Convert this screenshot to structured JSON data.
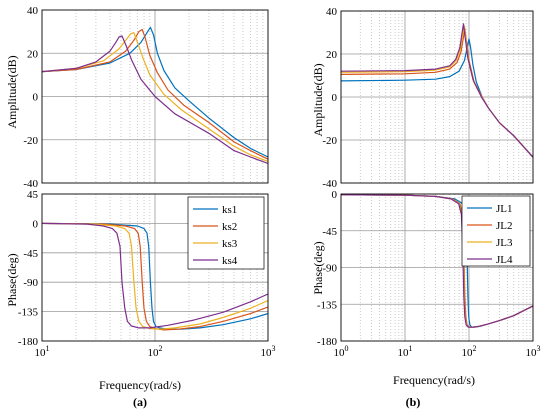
{
  "chart_data": [
    {
      "panel": "(a) amplitude",
      "type": "line",
      "xscale": "log",
      "xlim": [
        10,
        1000
      ],
      "ylim": [
        -40,
        40
      ],
      "ylabel": "Amplitude(dB)",
      "yticks": [
        40,
        20,
        0,
        -20,
        -40
      ],
      "grid": true,
      "series": [
        {
          "name": "ks1",
          "color": "#0072BD",
          "x": [
            10,
            20,
            40,
            60,
            75,
            85,
            91,
            97,
            105,
            120,
            150,
            200,
            300,
            500,
            700,
            1000
          ],
          "y": [
            11.5,
            12.5,
            15.5,
            20,
            25,
            29.5,
            32,
            28.5,
            20,
            12,
            4,
            -2,
            -10,
            -19,
            -24,
            -28
          ]
        },
        {
          "name": "ks2",
          "color": "#D95319",
          "x": [
            10,
            20,
            40,
            55,
            65,
            72,
            77,
            82,
            90,
            105,
            130,
            180,
            300,
            500,
            700,
            1000
          ],
          "y": [
            11.5,
            12.5,
            16,
            21,
            26,
            30,
            31,
            27,
            19,
            11,
            3,
            -4,
            -12,
            -21,
            -25,
            -29
          ]
        },
        {
          "name": "ks3",
          "color": "#EDB120",
          "x": [
            10,
            20,
            35,
            48,
            56,
            61,
            65,
            70,
            78,
            90,
            120,
            170,
            300,
            500,
            700,
            1000
          ],
          "y": [
            11.5,
            13,
            16.5,
            22,
            26.5,
            29,
            29.5,
            25,
            18,
            10,
            1,
            -6,
            -15,
            -23,
            -27,
            -30
          ]
        },
        {
          "name": "ks4",
          "color": "#7E2F8E",
          "x": [
            10,
            20,
            30,
            40,
            45,
            48,
            51,
            55,
            62,
            75,
            100,
            150,
            300,
            500,
            700,
            1000
          ],
          "y": [
            11.5,
            13,
            16,
            21,
            25,
            27.5,
            28,
            24,
            17,
            8,
            0,
            -8,
            -17,
            -25,
            -28,
            -31
          ]
        }
      ]
    },
    {
      "panel": "(a) phase",
      "type": "line",
      "xscale": "log",
      "xlim": [
        10,
        1000
      ],
      "ylim": [
        -180,
        45
      ],
      "xlabel": "Frequency(rad/s)",
      "ylabel": "Phase(deg)",
      "xticks": [
        "10",
        "10",
        "10"
      ],
      "xtick_exponents": [
        "1",
        "2",
        "3"
      ],
      "yticks": [
        45,
        0,
        -45,
        -90,
        -135,
        -180
      ],
      "legend": "top-right",
      "grid": true,
      "series": [
        {
          "name": "ks1",
          "color": "#0072BD",
          "x": [
            10,
            40,
            70,
            80,
            85,
            88,
            91,
            94,
            97,
            102,
            110,
            130,
            170,
            250,
            400,
            700,
            1000
          ],
          "y": [
            0,
            -1,
            -4,
            -8,
            -15,
            -35,
            -90,
            -130,
            -150,
            -158,
            -160,
            -162,
            -162,
            -160,
            -155,
            -146,
            -138
          ]
        },
        {
          "name": "ks2",
          "color": "#D95319",
          "x": [
            10,
            35,
            55,
            66,
            71,
            74,
            77,
            80,
            84,
            90,
            100,
            120,
            160,
            250,
            400,
            700,
            1000
          ],
          "y": [
            0,
            -1,
            -4,
            -8,
            -15,
            -35,
            -90,
            -130,
            -150,
            -158,
            -161,
            -163,
            -162,
            -158,
            -150,
            -138,
            -128
          ]
        },
        {
          "name": "ks3",
          "color": "#EDB120",
          "x": [
            10,
            30,
            45,
            54,
            59,
            62,
            65,
            68,
            72,
            78,
            90,
            110,
            150,
            250,
            400,
            700,
            1000
          ],
          "y": [
            0,
            -1,
            -4,
            -8,
            -15,
            -35,
            -90,
            -130,
            -150,
            -158,
            -161,
            -162,
            -160,
            -154,
            -144,
            -130,
            -118
          ]
        },
        {
          "name": "ks4",
          "color": "#7E2F8E",
          "x": [
            10,
            25,
            35,
            42,
            46,
            49,
            51,
            54,
            57,
            62,
            72,
            90,
            130,
            220,
            400,
            700,
            1000
          ],
          "y": [
            0,
            -1,
            -4,
            -8,
            -15,
            -35,
            -90,
            -130,
            -150,
            -157,
            -160,
            -160,
            -156,
            -148,
            -136,
            -120,
            -108
          ]
        }
      ]
    },
    {
      "panel": "(b) amplitude",
      "type": "line",
      "xscale": "log",
      "xlim": [
        1,
        1000
      ],
      "ylim": [
        -40,
        40
      ],
      "ylabel": "Amplitude(dB)",
      "yticks": [
        40,
        20,
        0,
        -20,
        -40
      ],
      "grid": true,
      "series": [
        {
          "name": "JL1",
          "color": "#0072BD",
          "x": [
            1,
            10,
            30,
            50,
            70,
            85,
            95,
            100,
            106,
            115,
            130,
            160,
            200,
            300,
            500,
            1000
          ],
          "y": [
            7.5,
            7.8,
            8.3,
            9.5,
            12,
            17,
            24,
            27,
            23,
            15,
            7,
            0,
            -5,
            -12,
            -18,
            -28
          ]
        },
        {
          "name": "JL2",
          "color": "#D95319",
          "x": [
            1,
            10,
            30,
            50,
            65,
            75,
            82,
            86,
            91,
            100,
            120,
            160,
            200,
            300,
            500,
            1000
          ],
          "y": [
            10.5,
            10.8,
            11.5,
            13,
            16,
            21,
            28,
            32,
            26,
            17,
            7,
            0,
            -5,
            -12,
            -18,
            -28
          ]
        },
        {
          "name": "JL3",
          "color": "#EDB120",
          "x": [
            1,
            10,
            30,
            50,
            63,
            73,
            80,
            84,
            89,
            98,
            118,
            158,
            200,
            300,
            500,
            1000
          ],
          "y": [
            11.5,
            11.8,
            12.5,
            14,
            17,
            22,
            29,
            33,
            27,
            17,
            7,
            0,
            -5,
            -12,
            -18,
            -28
          ]
        },
        {
          "name": "JL4",
          "color": "#7E2F8E",
          "x": [
            1,
            10,
            30,
            50,
            62,
            72,
            78,
            82,
            87,
            96,
            116,
            156,
            200,
            300,
            500,
            1000
          ],
          "y": [
            12,
            12.3,
            13,
            14.5,
            17.5,
            23,
            30,
            34,
            28,
            18,
            8,
            0,
            -5,
            -12,
            -18,
            -28
          ]
        }
      ]
    },
    {
      "panel": "(b) phase",
      "type": "line",
      "xscale": "log",
      "xlim": [
        1,
        1000
      ],
      "ylim": [
        -180,
        0
      ],
      "xlabel": "Frequency(rad/s)",
      "ylabel": "Phase(deg)",
      "xticks": [
        "10",
        "10",
        "10",
        "10"
      ],
      "xtick_exponents": [
        "0",
        "1",
        "2",
        "3"
      ],
      "yticks": [
        0,
        -45,
        -90,
        -135,
        -180
      ],
      "legend": "top-right",
      "grid": true,
      "series": [
        {
          "name": "JL1",
          "color": "#0072BD",
          "x": [
            1,
            10,
            30,
            60,
            80,
            88,
            93,
            96,
            99,
            103,
            110,
            125,
            150,
            200,
            300,
            500,
            1000
          ],
          "y": [
            -1,
            -1.5,
            -3,
            -6,
            -12,
            -25,
            -70,
            -125,
            -150,
            -160,
            -163,
            -163,
            -162,
            -159,
            -155,
            -149,
            -137
          ]
        },
        {
          "name": "JL2",
          "color": "#D95319",
          "x": [
            1,
            10,
            30,
            55,
            72,
            79,
            83,
            86,
            89,
            93,
            100,
            118,
            145,
            200,
            300,
            500,
            1000
          ],
          "y": [
            -1,
            -1.5,
            -3,
            -6,
            -12,
            -25,
            -70,
            -125,
            -150,
            -160,
            -163,
            -163,
            -162,
            -159,
            -155,
            -149,
            -137
          ]
        },
        {
          "name": "JL3",
          "color": "#EDB120",
          "x": [
            1,
            10,
            30,
            53,
            70,
            77,
            81,
            84,
            87,
            91,
            98,
            116,
            143,
            200,
            300,
            500,
            1000
          ],
          "y": [
            -1,
            -1.5,
            -3,
            -6,
            -12,
            -25,
            -70,
            -125,
            -150,
            -160,
            -163,
            -163,
            -162,
            -159,
            -155,
            -149,
            -137
          ]
        },
        {
          "name": "JL4",
          "color": "#7E2F8E",
          "x": [
            1,
            10,
            30,
            52,
            69,
            76,
            80,
            83,
            86,
            90,
            97,
            115,
            142,
            200,
            300,
            500,
            1000
          ],
          "y": [
            -1,
            -1.5,
            -3,
            -6,
            -12,
            -25,
            -70,
            -125,
            -150,
            -160,
            -163,
            -163,
            -162,
            -159,
            -155,
            -149,
            -137
          ]
        }
      ]
    }
  ],
  "captions": [
    "(a)",
    "(b)"
  ]
}
